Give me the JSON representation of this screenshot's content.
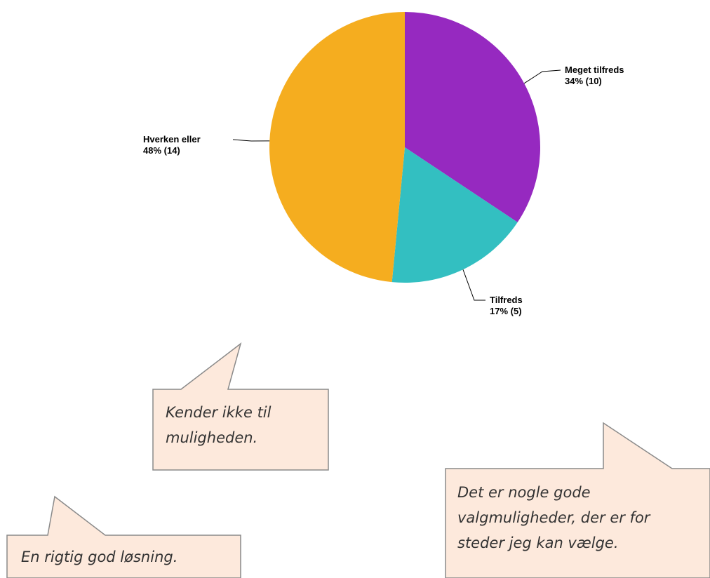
{
  "chart_data": {
    "type": "pie",
    "categories": [
      "Meget tilfreds",
      "Tilfreds",
      "Hverken eller"
    ],
    "values": [
      34,
      17,
      48
    ],
    "value_labels": [
      "34% (10)",
      "17% (5)",
      "48% (14)"
    ],
    "colors": [
      "#9629c0",
      "#33bfc1",
      "#f5ad1f"
    ]
  },
  "callouts": [
    {
      "text": "Kender ikke til muligheden."
    },
    {
      "text": "Det er nogle gode valgmuligheder, der er for steder jeg kan vælge."
    },
    {
      "text": "En rigtig god løsning."
    }
  ]
}
